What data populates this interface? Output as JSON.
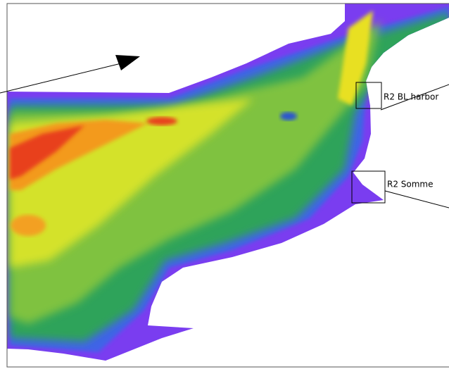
{
  "annotations": [
    {
      "label": "R2 BL harbor"
    },
    {
      "label": "R2 Somme"
    }
  ]
}
